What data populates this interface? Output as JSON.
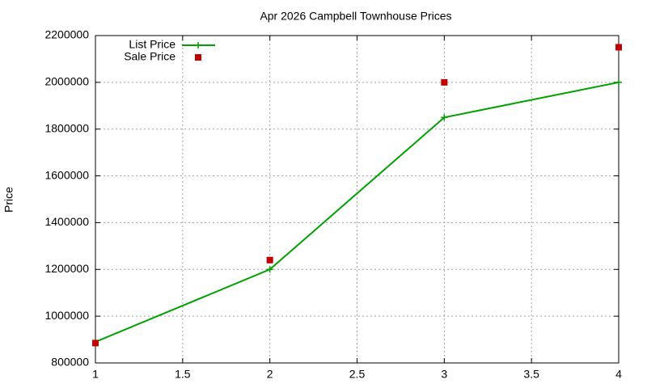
{
  "chart_data": {
    "type": "line",
    "title": "Apr 2026 Campbell Townhouse Prices",
    "ylabel": "Price",
    "x": [
      1,
      2,
      3,
      4
    ],
    "series": [
      {
        "name": "List Price",
        "color": "#00a000",
        "style": "linespoints",
        "values": [
          890000,
          1200000,
          1850000,
          2000000
        ]
      },
      {
        "name": "Sale Price",
        "color": "#c00000",
        "style": "points",
        "values": [
          885000,
          1240000,
          2000000,
          2150000
        ]
      }
    ],
    "xlim": [
      1,
      4
    ],
    "xticks": [
      1,
      1.5,
      2,
      2.5,
      3,
      3.5,
      4
    ],
    "ylim": [
      800000,
      2200000
    ],
    "yticks": [
      800000,
      1000000,
      1200000,
      1400000,
      1600000,
      1800000,
      2000000,
      2200000
    ],
    "grid": true,
    "legend": "top-left"
  }
}
